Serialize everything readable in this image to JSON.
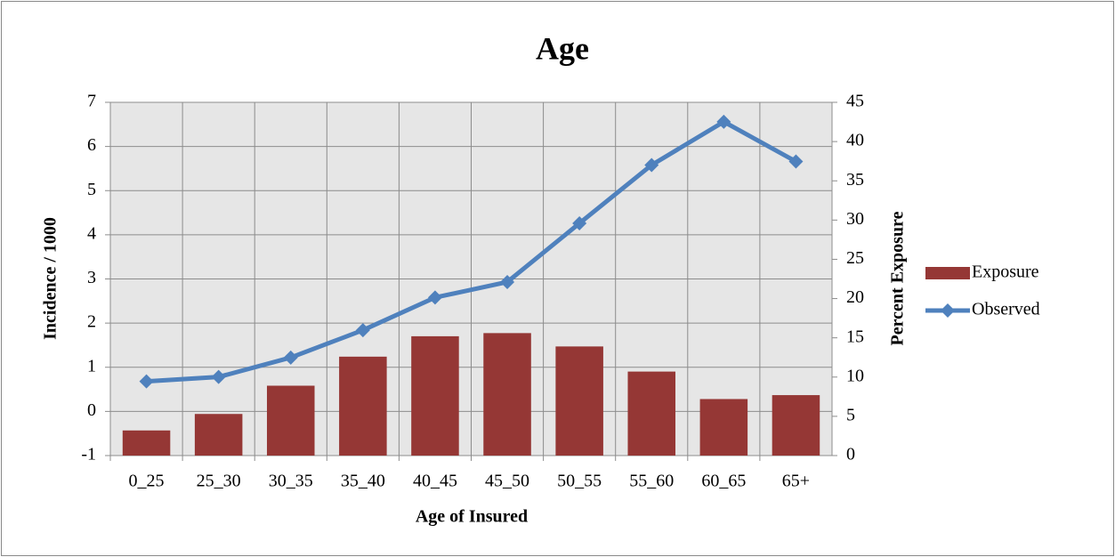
{
  "chart_data": {
    "type": "combo",
    "title": "Age",
    "xlabel": "Age of Insured",
    "ylabel": "Incidence / 1000",
    "y2label": "Percent Exposure",
    "categories": [
      "0_25",
      "25_30",
      "30_35",
      "35_40",
      "40_45",
      "45_50",
      "50_55",
      "55_60",
      "60_65",
      "65+"
    ],
    "series": [
      {
        "name": "Exposure",
        "type": "bar",
        "axis": "y2",
        "color": "#953735",
        "values": [
          3.2,
          5.3,
          8.9,
          12.6,
          15.2,
          15.6,
          13.9,
          10.7,
          7.2,
          7.7
        ]
      },
      {
        "name": "Observed",
        "type": "line",
        "color": "#4f81bd",
        "values": [
          0.68,
          0.78,
          1.22,
          1.84,
          2.58,
          2.93,
          4.26,
          5.58,
          6.56,
          5.66
        ]
      }
    ],
    "ylim": [
      -1,
      7
    ],
    "yticks": [
      -1,
      0,
      1,
      2,
      3,
      4,
      5,
      6,
      7
    ],
    "y2lim": [
      0,
      45
    ],
    "y2ticks": [
      0,
      5,
      10,
      15,
      20,
      25,
      30,
      35,
      40,
      45
    ],
    "grid": true,
    "legend": "right"
  }
}
